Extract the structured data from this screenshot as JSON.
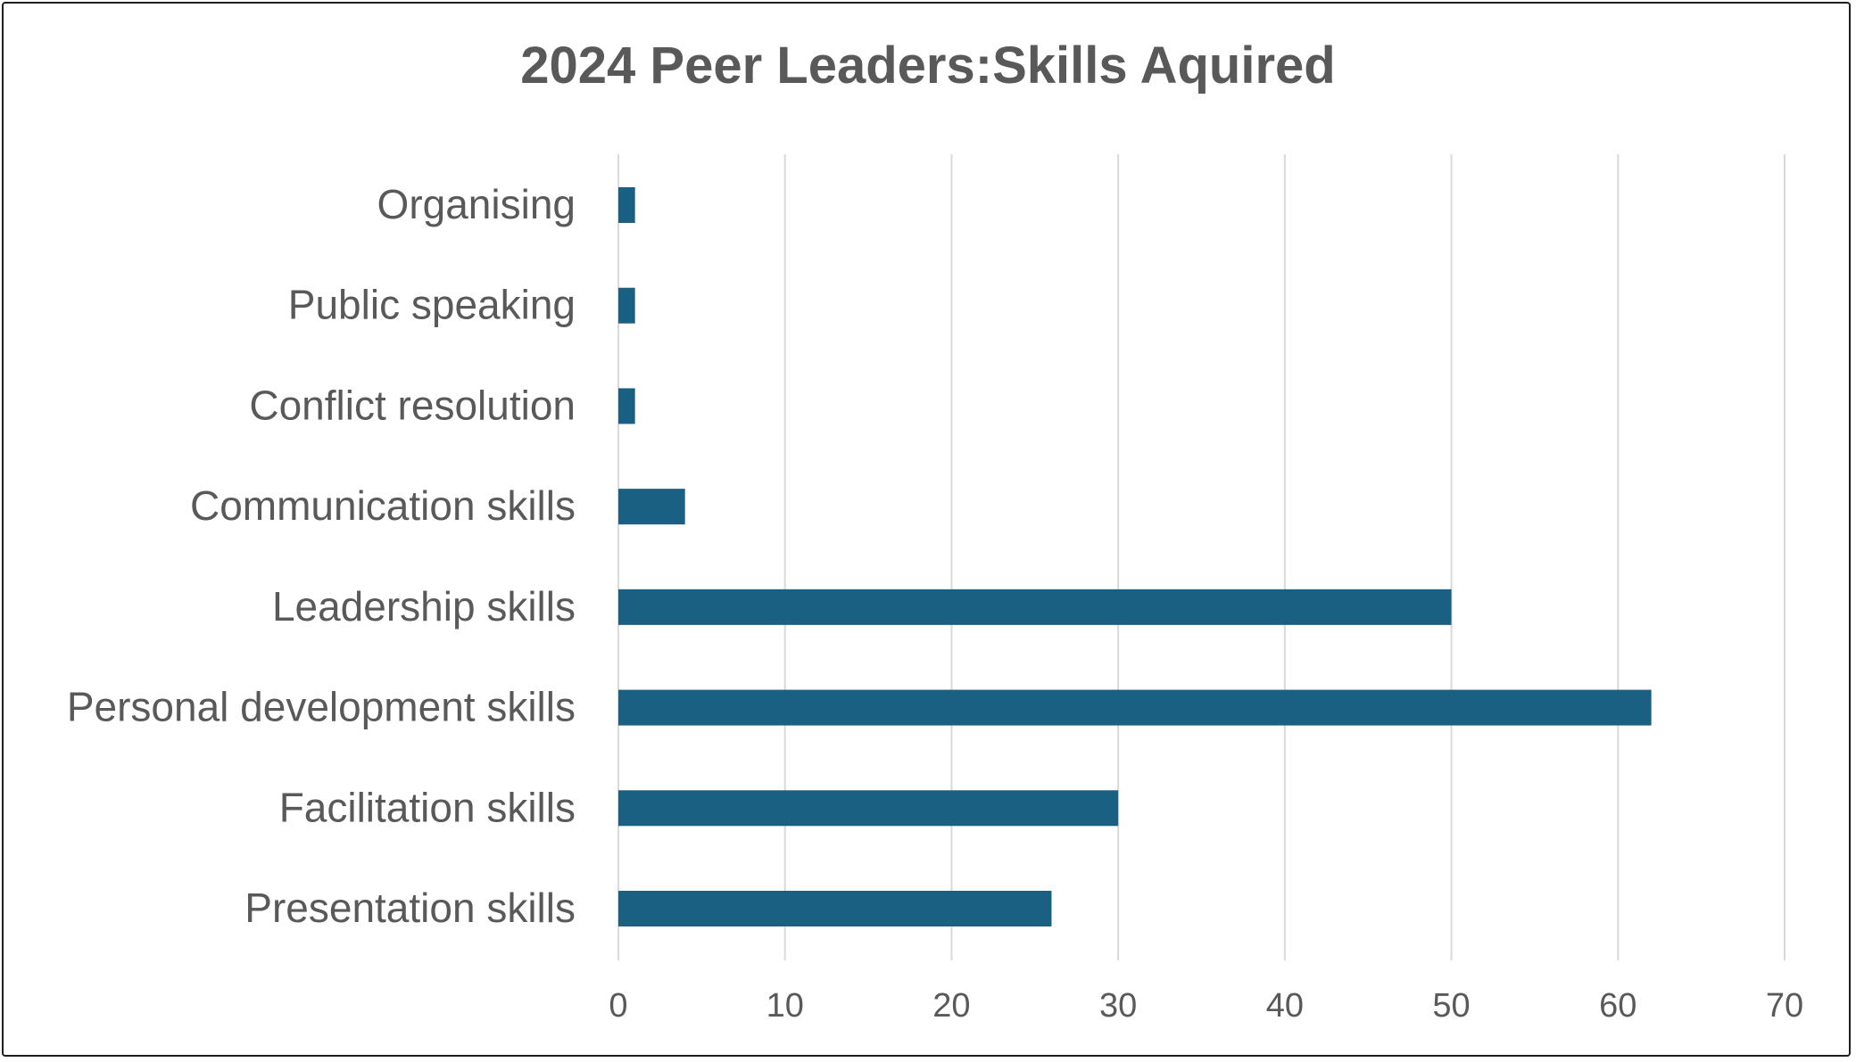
{
  "chart_data": {
    "type": "bar",
    "orientation": "horizontal",
    "title": "2024 Peer Leaders:Skills Aquired",
    "categories": [
      "Presentation skills",
      "Facilitation skills",
      "Personal development skills",
      "Leadership skills",
      "Communication skills",
      "Conflict resolution",
      "Public speaking",
      "Organising"
    ],
    "values": [
      26,
      30,
      62,
      50,
      4,
      1,
      1,
      1
    ],
    "xlim": [
      0,
      70
    ],
    "xticks": [
      0,
      10,
      20,
      30,
      40,
      50,
      60,
      70
    ],
    "grid": "vertical",
    "legend": "none",
    "bar_color": "#1a6082",
    "grid_color": "#d9d9d9",
    "text_color": "#595959"
  }
}
